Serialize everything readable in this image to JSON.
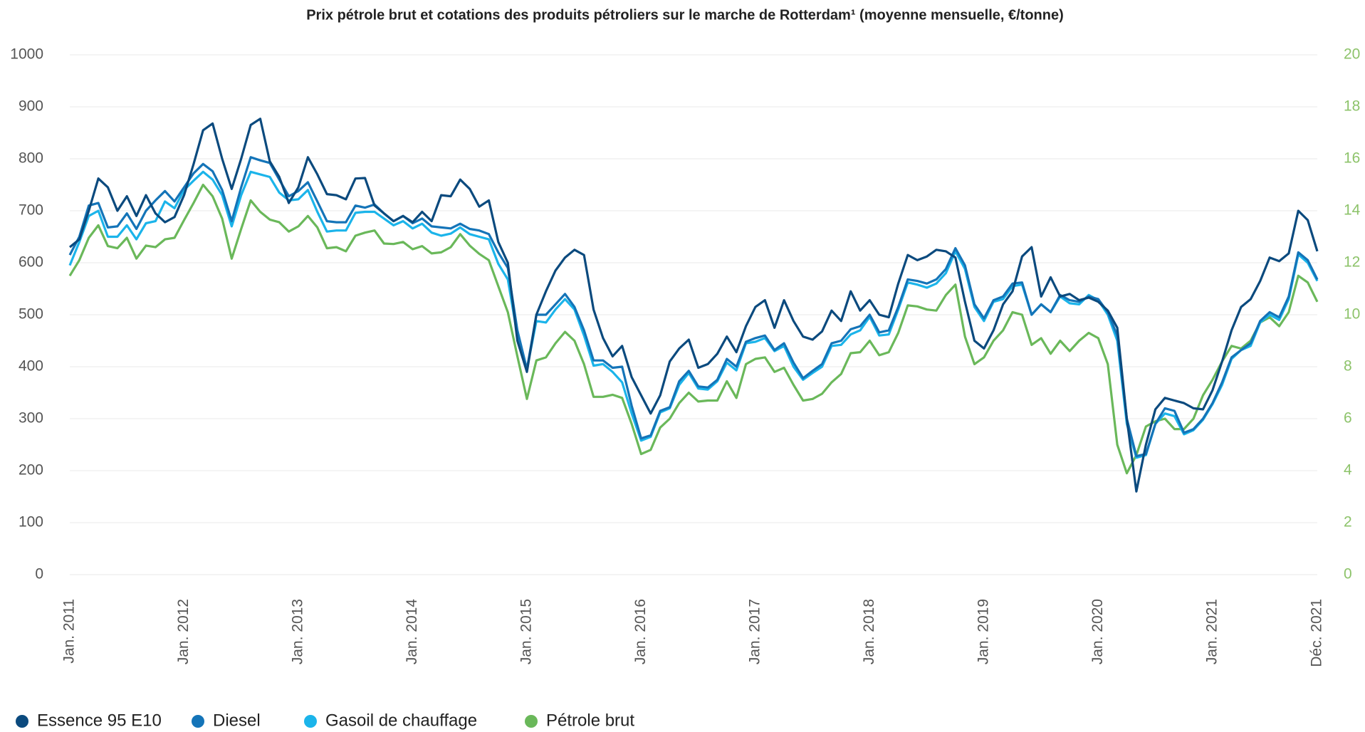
{
  "chart_data": {
    "type": "line",
    "title": "Prix pétrole brut et cotations des produits pétroliers sur le marche de Rotterdam¹  (moyenne mensuelle, €/tonne)",
    "categories": [
      "Jan. 2011",
      null,
      null,
      null,
      null,
      null,
      null,
      null,
      null,
      null,
      null,
      null,
      "Jan. 2012",
      null,
      null,
      null,
      null,
      null,
      null,
      null,
      null,
      null,
      null,
      null,
      "Jan. 2013",
      null,
      null,
      null,
      null,
      null,
      null,
      null,
      null,
      null,
      null,
      null,
      "Jan. 2014",
      null,
      null,
      null,
      null,
      null,
      null,
      null,
      null,
      null,
      null,
      null,
      "Jan. 2015",
      null,
      null,
      null,
      null,
      null,
      null,
      null,
      null,
      null,
      null,
      null,
      "Jan. 2016",
      null,
      null,
      null,
      null,
      null,
      null,
      null,
      null,
      null,
      null,
      null,
      "Jan. 2017",
      null,
      null,
      null,
      null,
      null,
      null,
      null,
      null,
      null,
      null,
      null,
      "Jan. 2018",
      null,
      null,
      null,
      null,
      null,
      null,
      null,
      null,
      null,
      null,
      null,
      "Jan. 2019",
      null,
      null,
      null,
      null,
      null,
      null,
      null,
      null,
      null,
      null,
      null,
      "Jan. 2020",
      null,
      null,
      null,
      null,
      null,
      null,
      null,
      null,
      null,
      null,
      null,
      "Jan. 2021",
      null,
      null,
      null,
      null,
      null,
      null,
      null,
      null,
      null,
      null,
      "Déc. 2021"
    ],
    "series": [
      {
        "name": "Essence 95 E10",
        "color": "#0b4a7e",
        "values": [
          630,
          645,
          700,
          762,
          745,
          700,
          728,
          690,
          730,
          695,
          678,
          688,
          730,
          790,
          855,
          868,
          800,
          742,
          800,
          865,
          877,
          795,
          765,
          715,
          745,
          803,
          770,
          732,
          730,
          722,
          762,
          763,
          710,
          695,
          680,
          690,
          678,
          698,
          680,
          730,
          728,
          760,
          742,
          708,
          720,
          640,
          600,
          450,
          390,
          500,
          545,
          585,
          610,
          625,
          615,
          510,
          455,
          420,
          440,
          380,
          345,
          310,
          345,
          410,
          435,
          452,
          398,
          405,
          425,
          458,
          428,
          478,
          515,
          528,
          475,
          528,
          488,
          458,
          452,
          468,
          508,
          488,
          545,
          508,
          528,
          500,
          495,
          560,
          615,
          605,
          612,
          625,
          622,
          610,
          525,
          450,
          435,
          470,
          520,
          545,
          612,
          630,
          535,
          572,
          535,
          540,
          528,
          533,
          525,
          508,
          475,
          300,
          160,
          250,
          318,
          340,
          335,
          330,
          320,
          318,
          355,
          410,
          470,
          515,
          530,
          565,
          610,
          603,
          618,
          700,
          682,
          622
        ]
      },
      {
        "name": "Diesel",
        "color": "#1474b8",
        "values": [
          615,
          650,
          710,
          715,
          668,
          670,
          695,
          665,
          700,
          720,
          738,
          718,
          745,
          772,
          790,
          776,
          740,
          680,
          745,
          803,
          797,
          792,
          760,
          728,
          738,
          755,
          718,
          680,
          678,
          678,
          710,
          706,
          712,
          695,
          680,
          690,
          676,
          685,
          670,
          668,
          666,
          675,
          665,
          662,
          655,
          620,
          590,
          470,
          395,
          500,
          500,
          520,
          540,
          515,
          470,
          412,
          412,
          398,
          400,
          325,
          262,
          268,
          315,
          322,
          372,
          392,
          362,
          360,
          375,
          415,
          400,
          448,
          455,
          460,
          432,
          445,
          408,
          378,
          392,
          405,
          445,
          450,
          472,
          478,
          500,
          466,
          470,
          515,
          568,
          565,
          560,
          568,
          588,
          628,
          595,
          520,
          493,
          528,
          535,
          560,
          562,
          500,
          520,
          505,
          538,
          528,
          525,
          535,
          530,
          505,
          460,
          300,
          228,
          232,
          290,
          320,
          315,
          273,
          280,
          300,
          330,
          370,
          418,
          432,
          445,
          488,
          505,
          495,
          535,
          620,
          605,
          568
        ]
      },
      {
        "name": "Gasoil de chauffage",
        "color": "#1bb4ea",
        "values": [
          595,
          640,
          690,
          700,
          650,
          650,
          672,
          645,
          676,
          680,
          718,
          705,
          740,
          758,
          775,
          760,
          730,
          670,
          730,
          775,
          770,
          765,
          735,
          720,
          722,
          740,
          698,
          660,
          662,
          662,
          696,
          698,
          698,
          685,
          672,
          680,
          666,
          675,
          658,
          652,
          656,
          668,
          655,
          650,
          645,
          598,
          568,
          460,
          395,
          488,
          485,
          510,
          530,
          510,
          460,
          402,
          405,
          390,
          370,
          310,
          258,
          265,
          312,
          320,
          365,
          388,
          358,
          356,
          372,
          408,
          393,
          445,
          448,
          455,
          430,
          440,
          400,
          375,
          388,
          400,
          440,
          442,
          462,
          470,
          496,
          460,
          462,
          510,
          562,
          558,
          552,
          560,
          580,
          622,
          588,
          515,
          488,
          525,
          530,
          555,
          558,
          500,
          520,
          505,
          535,
          522,
          520,
          538,
          528,
          500,
          450,
          290,
          225,
          230,
          290,
          310,
          305,
          270,
          278,
          298,
          328,
          365,
          415,
          432,
          440,
          485,
          500,
          490,
          530,
          616,
          600,
          565
        ]
      },
      {
        "name": "Pétrole brut",
        "color": "#6ab85a",
        "axis": "y2",
        "values": [
          11.5,
          12.1,
          12.96,
          13.44,
          12.64,
          12.56,
          12.96,
          12.16,
          12.66,
          12.6,
          12.9,
          12.96,
          13.64,
          14.3,
          15,
          14.56,
          13.7,
          12.16,
          13.3,
          14.4,
          13.96,
          13.66,
          13.56,
          13.2,
          13.4,
          13.8,
          13.36,
          12.56,
          12.6,
          12.44,
          13.04,
          13.16,
          13.24,
          12.74,
          12.72,
          12.8,
          12.52,
          12.64,
          12.36,
          12.4,
          12.6,
          13.1,
          12.66,
          12.34,
          12.1,
          11.1,
          10.1,
          8.4,
          6.76,
          8.24,
          8.36,
          8.9,
          9.34,
          9,
          8.1,
          6.84,
          6.84,
          6.92,
          6.8,
          5.8,
          4.64,
          4.8,
          5.66,
          6,
          6.6,
          7,
          6.66,
          6.7,
          6.7,
          7.44,
          6.8,
          8.1,
          8.3,
          8.36,
          7.8,
          7.96,
          7.3,
          6.7,
          6.76,
          6.96,
          7.4,
          7.72,
          8.52,
          8.56,
          9,
          8.44,
          8.56,
          9.3,
          10.36,
          10.32,
          10.2,
          10.16,
          10.76,
          11.16,
          9.16,
          8.1,
          8.36,
          9,
          9.4,
          10.1,
          10,
          8.84,
          9.1,
          8.5,
          9,
          8.6,
          9,
          9.3,
          9.1,
          8.1,
          5,
          3.9,
          4.6,
          5.7,
          5.9,
          6,
          5.6,
          5.6,
          6,
          6.9,
          7.5,
          8.2,
          8.8,
          8.7,
          9,
          9.7,
          9.9,
          9.56,
          10.1,
          11.5,
          11.24,
          10.5
        ]
      }
    ],
    "ylim": [
      0,
      1000
    ],
    "yticks": [
      0,
      100,
      200,
      300,
      400,
      500,
      600,
      700,
      800,
      900,
      1000
    ],
    "y2lim": [
      0,
      20
    ],
    "y2ticks": [
      0,
      2,
      4,
      6,
      8,
      10,
      12,
      14,
      16,
      18,
      20
    ],
    "y2color": "#8dc36a",
    "grid": true,
    "legend": "bottom"
  }
}
